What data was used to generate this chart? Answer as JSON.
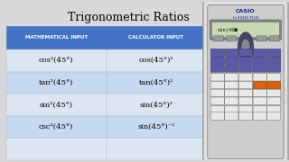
{
  "title": "Trigonometric Ratios",
  "title_fontsize": 9,
  "bg_color": "#d8d8d8",
  "table_header_bg": "#4472c4",
  "table_header_color": "#ffffff",
  "table_row_bg_odd": "#dce6f1",
  "table_row_bg_even": "#c5d9f1",
  "table_border_color": "#4472c4",
  "col_headers": [
    "MATHEMATICAL INPUT",
    "CALCULATOR INPUT"
  ],
  "rows_math": [
    "cos²(45°)",
    "tan²(45°)",
    "sin²(45°)",
    "csc²(45°)"
  ],
  "rows_calc": [
    "cos(45°)²",
    "tan(45°)²",
    "sin(45°)²",
    "sin(45°)⁻²"
  ],
  "calc_body_color": "#e0e0e0",
  "calc_body_edge": "#999999",
  "calc_screen_color": "#c8d8b0",
  "calc_screen_text": "sin(45■",
  "calc_btn_blue": "#5a5aaa",
  "calc_btn_gray": "#999999",
  "calc_btn_orange": "#e06000",
  "calc_btn_white": "#e8e8e8",
  "calc_btn_light": "#cccccc"
}
